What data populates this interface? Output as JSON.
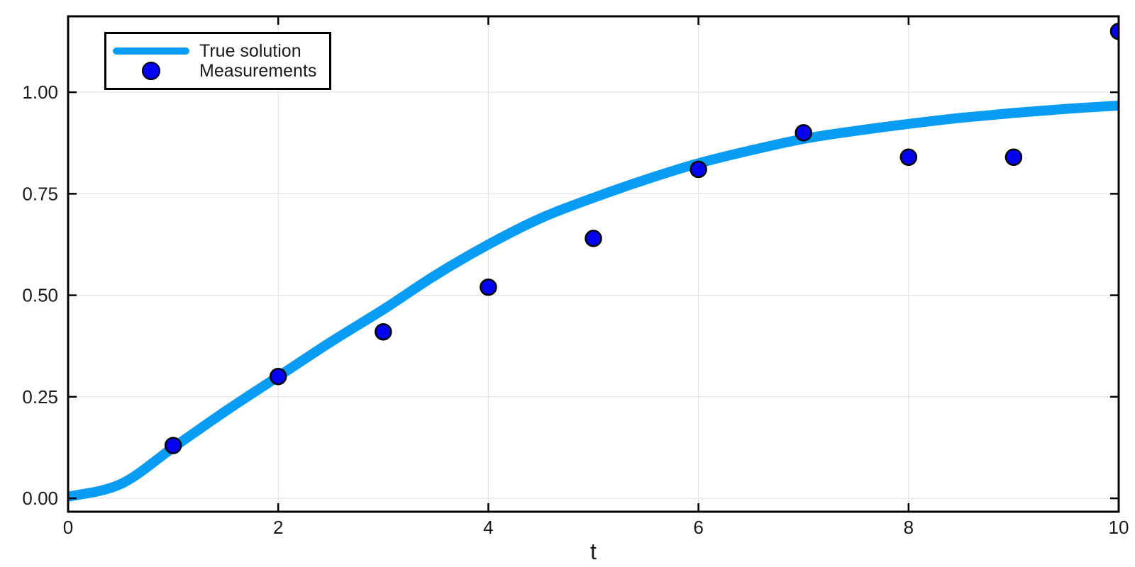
{
  "chart_data": {
    "type": "line+scatter",
    "xlabel": "t",
    "xlim": [
      0,
      10
    ],
    "ylim": [
      -0.033,
      1.187
    ],
    "grid": true,
    "frame": "box-with-mirrored-ticks",
    "x_ticks": {
      "values": [
        0,
        2,
        4,
        6,
        8,
        10
      ],
      "labels": [
        "0",
        "2",
        "4",
        "6",
        "8",
        "10"
      ]
    },
    "y_ticks": {
      "values": [
        0,
        0.25,
        0.5,
        0.75,
        1.0
      ],
      "labels": [
        "0.00",
        "0.25",
        "0.50",
        "0.75",
        "1.00"
      ]
    },
    "legend": {
      "position": "top-left",
      "entries": [
        {
          "label": "True solution",
          "swatch": "line",
          "color": "#089cf4"
        },
        {
          "label": "Measurements",
          "swatch": "marker",
          "color": "#0404f0"
        }
      ]
    },
    "series": [
      {
        "name": "True solution",
        "type": "line",
        "color": "#089cf4",
        "line_width": 14,
        "x": [
          0,
          0.5,
          1,
          1.5,
          2,
          2.5,
          3,
          3.5,
          4,
          4.5,
          5,
          5.5,
          6,
          6.5,
          7,
          7.5,
          8,
          8.5,
          9,
          9.5,
          10
        ],
        "y": [
          0.004,
          0.035,
          0.125,
          0.215,
          0.3,
          0.385,
          0.465,
          0.55,
          0.625,
          0.69,
          0.74,
          0.785,
          0.825,
          0.857,
          0.885,
          0.905,
          0.922,
          0.937,
          0.949,
          0.959,
          0.967
        ]
      },
      {
        "name": "Measurements",
        "type": "scatter",
        "color": "#0404f0",
        "edge_color": "#000000",
        "marker_radius": 11,
        "x": [
          1,
          2,
          3,
          4,
          5,
          6,
          7,
          8,
          9,
          10
        ],
        "y": [
          0.13,
          0.3,
          0.41,
          0.52,
          0.64,
          0.81,
          0.9,
          0.84,
          0.84,
          1.15
        ]
      }
    ],
    "colors": {
      "background": "#ffffff",
      "frame": "#000000",
      "grid": "#e5e5e5",
      "tick_text": "#1a1a1a"
    }
  }
}
